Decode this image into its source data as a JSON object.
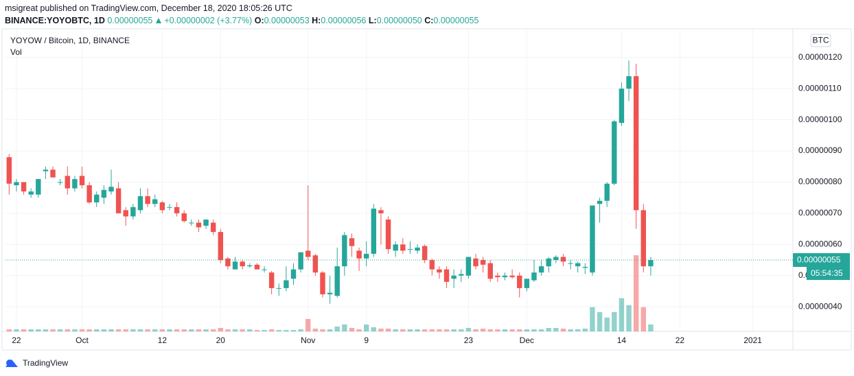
{
  "header": {
    "publisher": "msigreat published on TradingView.com, December 18, 2020 18:05:26 UTC",
    "symbol": "BINANCE:YOYOBTC, 1D",
    "price": "0.00000055",
    "change": "+0.00000002 (+3.77%)",
    "open_label": "O:",
    "open": "0.00000053",
    "high_label": "H:",
    "high": "0.00000056",
    "low_label": "L:",
    "low": "0.00000050",
    "close_label": "C:",
    "close": "0.00000055"
  },
  "chart_data": {
    "type": "candlestick",
    "legend_title": "YOYOW / Bitcoin, 1D, BINANCE",
    "volume_label": "Vol",
    "currency": "BTC",
    "last_price_label": "0.00000055",
    "countdown": "05:54:35",
    "up_color": "#26a69a",
    "down_color": "#ef5350",
    "grid": true,
    "categories": [
      null,
      "22",
      null,
      null,
      null,
      null,
      null,
      null,
      null,
      null,
      "Oct",
      null,
      null,
      null,
      null,
      null,
      null,
      null,
      null,
      null,
      null,
      "12",
      null,
      null,
      null,
      null,
      null,
      null,
      null,
      "20",
      null,
      null,
      null,
      null,
      null,
      null,
      null,
      null,
      null,
      null,
      null,
      "Nov",
      null,
      null,
      null,
      null,
      null,
      null,
      null,
      "9",
      null,
      null,
      null,
      null,
      null,
      null,
      null,
      null,
      null,
      null,
      null,
      null,
      null,
      "23",
      null,
      null,
      null,
      null,
      null,
      null,
      null,
      "Dec",
      null,
      null,
      null,
      null,
      null,
      null,
      null,
      null,
      null,
      null,
      null,
      null,
      "14",
      null,
      null,
      null,
      null,
      null,
      null,
      null,
      "22",
      null,
      null,
      null,
      null,
      null,
      null,
      null,
      null,
      null,
      "2021",
      null,
      null,
      null,
      null,
      null
    ],
    "open": [
      8.8e-07,
      7.9e-07,
      8e-07,
      7.6e-07,
      7.6e-07,
      8.35e-07,
      8.4e-07,
      8e-07,
      8.2e-07,
      7.8e-07,
      8.2e-07,
      7.9e-07,
      7.35e-07,
      7.5e-07,
      7.7e-07,
      7.8e-07,
      7.1e-07,
      6.9e-07,
      7.1e-07,
      7.55e-07,
      7.3e-07,
      7.35e-07,
      7.2e-07,
      7.2e-07,
      7e-07,
      6.7e-07,
      6.7e-07,
      6.6e-07,
      6.7e-07,
      6.4e-07,
      5.55e-07,
      5.2e-07,
      5.45e-07,
      5.3e-07,
      5.35e-07,
      5.2e-07,
      5.1e-07,
      4.6e-07,
      4.6e-07,
      4.9e-07,
      5.2e-07,
      5.8e-07,
      5.65e-07,
      5.1e-07,
      4.4e-07,
      4.35e-07,
      5.3e-07,
      6.2e-07,
      5.8e-07,
      5.55e-07,
      5.7e-07,
      7.1e-07,
      6.8e-07,
      5.8e-07,
      6e-07,
      5.85e-07,
      5.8e-07,
      5.95e-07,
      5.5e-07,
      5.2e-07,
      5.2e-07,
      4.9e-07,
      5e-07,
      5e-07,
      5.55e-07,
      5.5e-07,
      5.4e-07,
      5e-07,
      4.95e-07,
      5e-07,
      5e-07,
      4.6e-07,
      4.85e-07,
      5.1e-07,
      5.3e-07,
      5.5e-07,
      5.6e-07,
      5.4e-07,
      5.3e-07,
      5.25e-07,
      5.1e-07,
      7.3e-07,
      7.4e-07,
      7.95e-07,
      9.9e-07,
      1.1e-06,
      1.14e-06,
      7.1e-07,
      5.3e-07,
      null,
      null,
      null,
      null,
      null,
      null,
      null,
      null,
      null,
      null,
      null,
      null,
      null,
      null,
      null,
      null,
      null,
      null,
      null
    ],
    "high": [
      8.9e-07,
      8.1e-07,
      8e-07,
      7.8e-07,
      8.1e-07,
      8.5e-07,
      8.5e-07,
      8.1e-07,
      8.5e-07,
      8.2e-07,
      8.5e-07,
      8e-07,
      7.7e-07,
      7.9e-07,
      8.4e-07,
      8e-07,
      7.2e-07,
      7.3e-07,
      7.8e-07,
      7.8e-07,
      7.6e-07,
      7.4e-07,
      7.3e-07,
      7.35e-07,
      7.1e-07,
      6.8e-07,
      6.8e-07,
      6.8e-07,
      6.8e-07,
      6.5e-07,
      5.6e-07,
      5.6e-07,
      5.5e-07,
      5.4e-07,
      5.4e-07,
      5.3e-07,
      5.15e-07,
      4.75e-07,
      5.3e-07,
      5.4e-07,
      5.7e-07,
      7.9e-07,
      5.7e-07,
      5.15e-07,
      5e-07,
      5.9e-07,
      6.4e-07,
      6.35e-07,
      5.9e-07,
      6.1e-07,
      7.3e-07,
      7.2e-07,
      6.9e-07,
      6.1e-07,
      6.2e-07,
      6.1e-07,
      6e-07,
      6e-07,
      5.55e-07,
      5.3e-07,
      5.3e-07,
      5.2e-07,
      5.2e-07,
      5.6e-07,
      5.7e-07,
      5.6e-07,
      5.5e-07,
      5.1e-07,
      5.1e-07,
      5.2e-07,
      5.1e-07,
      4.9e-07,
      5.5e-07,
      5.5e-07,
      5.6e-07,
      5.65e-07,
      5.7e-07,
      5.5e-07,
      5.45e-07,
      5.4e-07,
      7.25e-07,
      7.5e-07,
      8e-07,
      1e-06,
      1.12e-06,
      1.19e-06,
      1.18e-06,
      7.3e-07,
      5.6e-07,
      null,
      null,
      null,
      null,
      null,
      null,
      null,
      null,
      null,
      null,
      null,
      null,
      null,
      null,
      null,
      null,
      null,
      null,
      null
    ],
    "low": [
      7.6e-07,
      7.7e-07,
      7.6e-07,
      7.5e-07,
      7.5e-07,
      8.1e-07,
      8.2e-07,
      7.9e-07,
      7.6e-07,
      7.7e-07,
      7.8e-07,
      7.3e-07,
      7.2e-07,
      7.3e-07,
      7.6e-07,
      7e-07,
      6.6e-07,
      6.8e-07,
      7e-07,
      7.2e-07,
      7.2e-07,
      7e-07,
      7.1e-07,
      6.9e-07,
      6.7e-07,
      6.6e-07,
      6.4e-07,
      6.5e-07,
      6.3e-07,
      5.4e-07,
      5.2e-07,
      5.2e-07,
      5.2e-07,
      5.25e-07,
      5.2e-07,
      5.1e-07,
      4.4e-07,
      4.35e-07,
      4.5e-07,
      4.7e-07,
      5.1e-07,
      5.5e-07,
      5e-07,
      4.3e-07,
      4.1e-07,
      4.3e-07,
      5e-07,
      5.6e-07,
      5.15e-07,
      5.3e-07,
      5.6e-07,
      6e-07,
      5.7e-07,
      5.6e-07,
      5.7e-07,
      5.7e-07,
      5.7e-07,
      5.4e-07,
      5e-07,
      4.9e-07,
      4.6e-07,
      4.6e-07,
      4.8e-07,
      4.9e-07,
      5.2e-07,
      5.1e-07,
      4.8e-07,
      4.8e-07,
      4.85e-07,
      4.9e-07,
      4.3e-07,
      4.5e-07,
      4.8e-07,
      5e-07,
      5.1e-07,
      5.4e-07,
      5.3e-07,
      5.2e-07,
      5.1e-07,
      5.05e-07,
      5e-07,
      6.7e-07,
      7.2e-07,
      7.9e-07,
      9.8e-07,
      1.06e-06,
      6.5e-07,
      5.1e-07,
      5e-07,
      null,
      null,
      null,
      null,
      null,
      null,
      null,
      null,
      null,
      null,
      null,
      null,
      null,
      null,
      null,
      null,
      null,
      null,
      null
    ],
    "close": [
      7.95e-07,
      8e-07,
      7.7e-07,
      7.7e-07,
      8.1e-07,
      8.4e-07,
      8.15e-07,
      8e-07,
      7.8e-07,
      8.1e-07,
      7.9e-07,
      7.35e-07,
      7.6e-07,
      7.75e-07,
      7.85e-07,
      7e-07,
      6.9e-07,
      7.2e-07,
      7.55e-07,
      7.3e-07,
      7.45e-07,
      7.1e-07,
      7.2e-07,
      7e-07,
      6.75e-07,
      6.7e-07,
      6.55e-07,
      6.8e-07,
      6.4e-07,
      5.5e-07,
      5.3e-07,
      5.45e-07,
      5.3e-07,
      5.33e-07,
      5.2e-07,
      5.2e-07,
      4.6e-07,
      4.6e-07,
      4.85e-07,
      5.2e-07,
      5.75e-07,
      5.6e-07,
      5.1e-07,
      4.4e-07,
      4.45e-07,
      5.3e-07,
      6.3e-07,
      5.95e-07,
      5.55e-07,
      5.7e-07,
      7.15e-07,
      7e-07,
      5.85e-07,
      6e-07,
      5.8e-07,
      5.85e-07,
      5.9e-07,
      5.5e-07,
      5.2e-07,
      5.1e-07,
      4.8e-07,
      5e-07,
      5.05e-07,
      5.6e-07,
      5.3e-07,
      5.35e-07,
      4.9e-07,
      4.95e-07,
      5e-07,
      4.95e-07,
      4.6e-07,
      4.9e-07,
      5.1e-07,
      5.3e-07,
      5.55e-07,
      5.6e-07,
      5.45e-07,
      5.4e-07,
      5.4e-07,
      5.28e-07,
      7.25e-07,
      7.4e-07,
      7.95e-07,
      9.95e-07,
      1.1e-06,
      1.14e-06,
      7.1e-07,
      5.3e-07,
      5.5e-07,
      null,
      null,
      null,
      null,
      null,
      null,
      null,
      null,
      null,
      null,
      null,
      null,
      null,
      null,
      null,
      null,
      null,
      null,
      null
    ],
    "volume": [
      3,
      3,
      3,
      3,
      3,
      3,
      3,
      3,
      3,
      3,
      3,
      3,
      3,
      3,
      3,
      3,
      3,
      3,
      3,
      3,
      3,
      3,
      3,
      3,
      3,
      3,
      3,
      3,
      3,
      5,
      3,
      3,
      3,
      3,
      2,
      2,
      3,
      2,
      2,
      2,
      3,
      18,
      4,
      3,
      3,
      7,
      10,
      5,
      3,
      10,
      6,
      4,
      4,
      3,
      3,
      3,
      3,
      3,
      3,
      3,
      3,
      3,
      3,
      5,
      3,
      4,
      3,
      3,
      3,
      3,
      3,
      3,
      3,
      3,
      5,
      5,
      4,
      3,
      3,
      4,
      35,
      28,
      20,
      28,
      48,
      38,
      110,
      35,
      10,
      null,
      null,
      null,
      null,
      null,
      null,
      null,
      null,
      null,
      null,
      null,
      null,
      null,
      null,
      null,
      null,
      null,
      null,
      null
    ],
    "ylim": [
      3.21e-07,
      1.292e-06
    ],
    "yticks": [
      {
        "value": 4e-07,
        "label": "0.00000040"
      },
      {
        "value": 5e-07,
        "label": "0.00000050"
      },
      {
        "value": 6e-07,
        "label": "0.00000060"
      },
      {
        "value": 7e-07,
        "label": "0.00000070"
      },
      {
        "value": 8e-07,
        "label": "0.00000080"
      },
      {
        "value": 9e-07,
        "label": "0.00000090"
      },
      {
        "value": 1e-06,
        "label": "0.00000100"
      },
      {
        "value": 1.1e-06,
        "label": "0.00000110"
      },
      {
        "value": 1.2e-06,
        "label": "0.00000120"
      }
    ]
  },
  "footer": {
    "brand": "TradingView"
  }
}
